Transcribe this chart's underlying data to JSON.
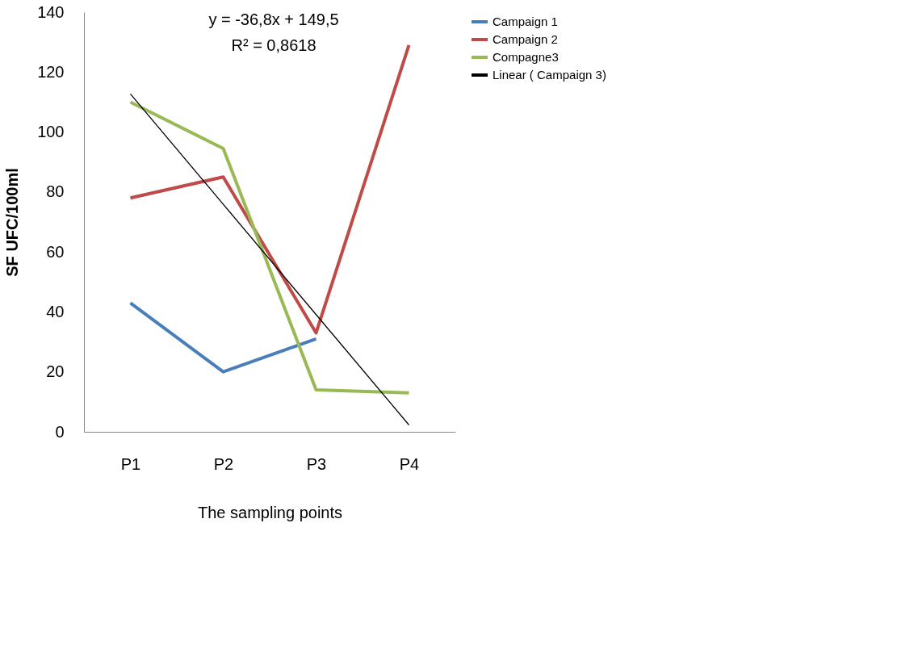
{
  "chart_data": {
    "type": "line",
    "xlabel": "The sampling points",
    "ylabel": "SF UFC/100ml",
    "categories": [
      "P1",
      "P2",
      "P3",
      "P4"
    ],
    "series": [
      {
        "name": "Campaign 1",
        "color": "#4a7ebb",
        "values": [
          43,
          20,
          31,
          null
        ]
      },
      {
        "name": "Campaign 2",
        "color": "#be4b48",
        "values": [
          78,
          85,
          33,
          129
        ]
      },
      {
        "name": "Compagne3",
        "color": "#98b954",
        "values": [
          110,
          94.5,
          14,
          13
        ]
      },
      {
        "name": "Linear ( Campaign 3)",
        "color": "#000000",
        "values": [
          112.7,
          75.9,
          39.1,
          2.3
        ]
      }
    ],
    "ylim": [
      0,
      140
    ],
    "yticks": [
      0,
      20,
      40,
      60,
      80,
      100,
      120,
      140
    ],
    "grid": false,
    "legend": "right",
    "marker": "none",
    "line_style": "solid",
    "annotations": [
      "y = -36,8x + 149,5",
      "R² = 0,8618"
    ]
  }
}
